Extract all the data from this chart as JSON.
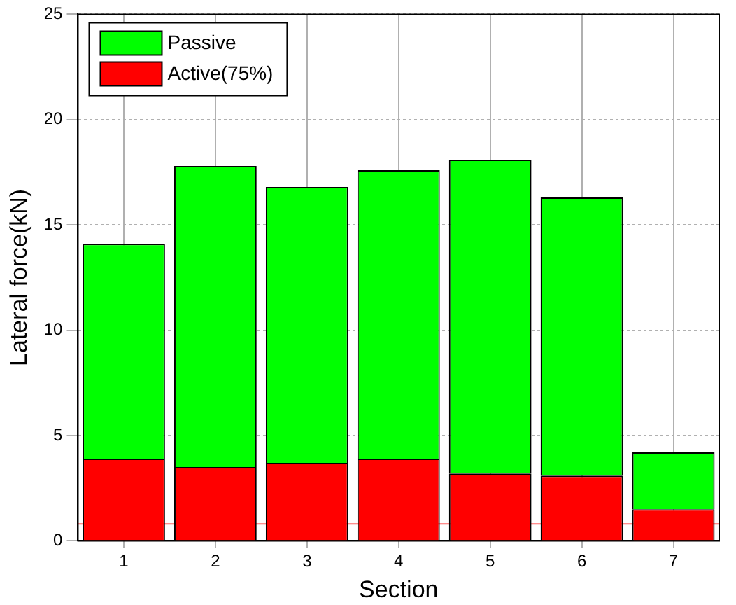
{
  "chart_data": {
    "type": "bar",
    "stacked": true,
    "xlabel": "Section",
    "ylabel": "Lateral force(kN)",
    "categories": [
      "1",
      "2",
      "3",
      "4",
      "5",
      "6",
      "7"
    ],
    "series": [
      {
        "name": "Active(75%)",
        "color": "#ff0000",
        "values": [
          3.9,
          3.5,
          3.7,
          3.9,
          3.2,
          3.1,
          1.5
        ]
      },
      {
        "name": "Passive",
        "color": "#00ff00",
        "values": [
          10.2,
          14.3,
          13.1,
          13.7,
          14.9,
          13.2,
          2.7
        ]
      }
    ],
    "ylim": [
      0,
      25
    ],
    "yticks": [
      0,
      5,
      10,
      15,
      20,
      25
    ],
    "grid": true,
    "legend": "top left",
    "ref_lines": [
      {
        "axis": "y",
        "value": 0.8,
        "color": "#ff6666"
      }
    ]
  }
}
